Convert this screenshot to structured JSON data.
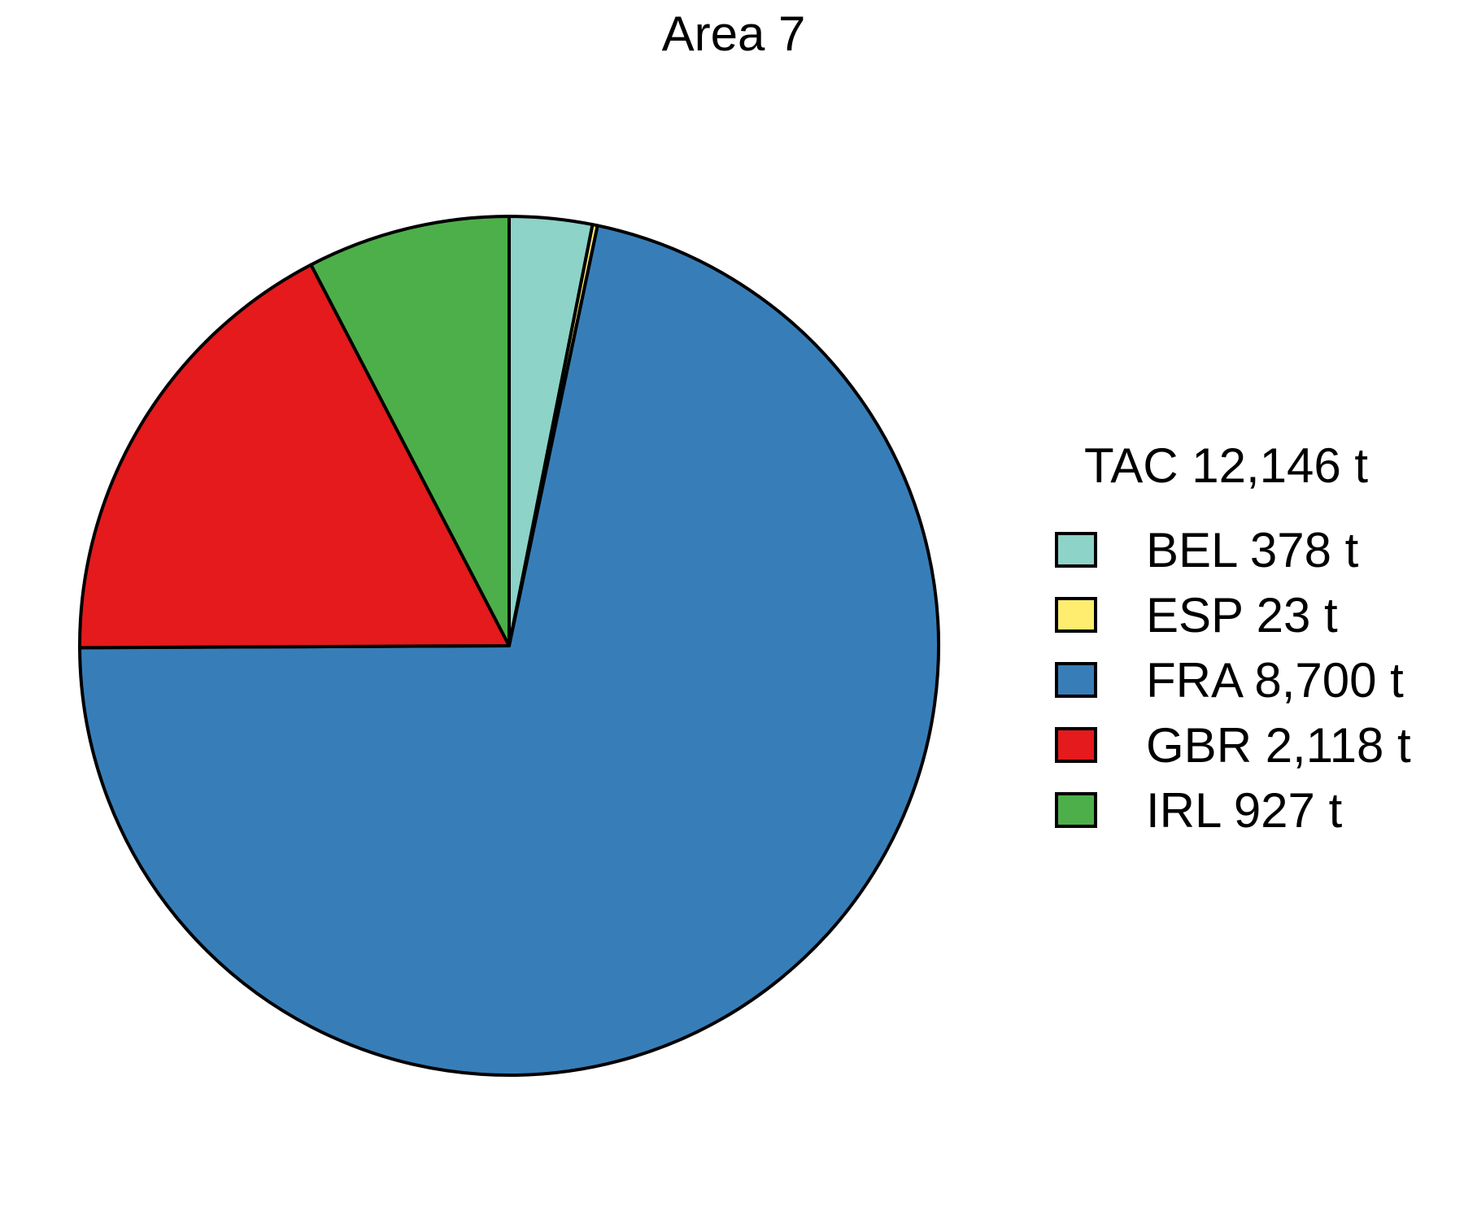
{
  "chart_data": {
    "type": "pie",
    "title": "Area 7",
    "legend": {
      "title": "TAC 12,146 t",
      "placement": "right"
    },
    "categories": [
      "BEL",
      "ESP",
      "FRA",
      "GBR",
      "IRL"
    ],
    "values": [
      378,
      23,
      8700,
      2118,
      927
    ],
    "labels": [
      "BEL 378 t",
      "ESP 23 t",
      "FRA 8,700 t",
      "GBR 2,118 t",
      "IRL 927 t"
    ],
    "colors": [
      "#8dd3c7",
      "#ffed6f",
      "#377eb8",
      "#e41a1c",
      "#4daf4a"
    ],
    "start_angle_deg": 90,
    "direction": "clockwise"
  }
}
